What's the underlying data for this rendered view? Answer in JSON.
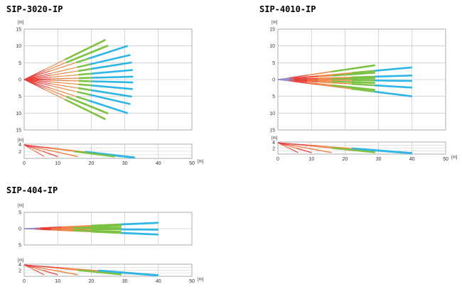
{
  "models": [
    {
      "name": "SIP-3020-IP",
      "unit": "[m]",
      "top_y_ticks": [
        "15",
        "10",
        "5",
        "0",
        "5",
        "10",
        "15"
      ],
      "side_y_ticks": [
        "4",
        "2"
      ],
      "x_ticks": [
        "0",
        "10",
        "20",
        "30",
        "40",
        "50"
      ],
      "side_x_max_label": "50",
      "x_unit": "[m]"
    },
    {
      "name": "SIP-4010-IP",
      "unit": "[m]",
      "top_y_ticks": [
        "15",
        "10",
        "5",
        "0",
        "5",
        "10",
        "15"
      ],
      "side_y_ticks": [
        "4",
        "2"
      ],
      "x_ticks": [
        "0",
        "10",
        "20",
        "30",
        "40",
        "50"
      ],
      "x_unit": "[m]"
    },
    {
      "name": "SIP-404-IP",
      "unit": "[m]",
      "top_y_ticks": [
        "5",
        "0",
        "5"
      ],
      "side_y_ticks": [
        "4",
        "2"
      ],
      "x_ticks": [
        "0",
        "10",
        "20",
        "30",
        "40",
        "50"
      ],
      "x_unit": "[m]"
    }
  ],
  "colors": {
    "red": "#e8403a",
    "orange": "#f0884a",
    "green": "#7cc242",
    "blue": "#2eb6e6",
    "purple": "#9a8ac8",
    "grid": "#999999"
  }
}
